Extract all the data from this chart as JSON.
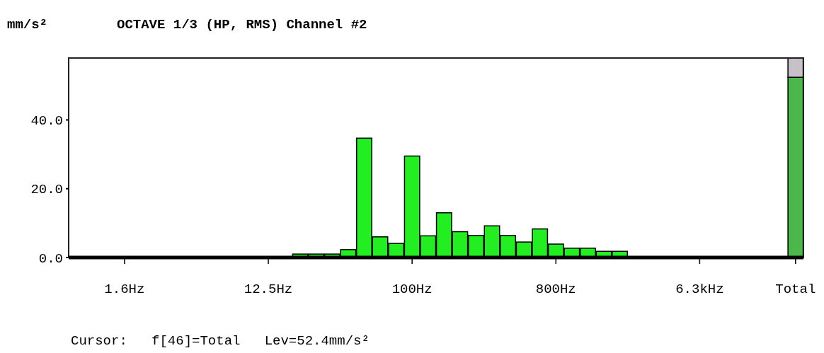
{
  "chart_data": {
    "type": "bar",
    "title": "OCTAVE 1/3  (HP, RMS)  Channel #2",
    "ylabel": "mm/s²",
    "annotations": [
      "Cursor:   f[46]=Total   Lev=52.4mm/s²"
    ],
    "categories": [
      null,
      null,
      null,
      "1.6Hz",
      null,
      null,
      null,
      null,
      null,
      null,
      null,
      null,
      "12.5Hz",
      null,
      null,
      null,
      null,
      null,
      null,
      null,
      null,
      "100Hz",
      null,
      null,
      null,
      null,
      null,
      null,
      null,
      null,
      "800Hz",
      null,
      null,
      null,
      null,
      null,
      null,
      null,
      null,
      "6.3kHz",
      null,
      null,
      null,
      null,
      null,
      "Total"
    ],
    "stacked": true,
    "series": [
      {
        "colors": [
          null,
          null,
          null,
          null,
          null,
          null,
          null,
          null,
          null,
          null,
          null,
          null,
          null,
          null,
          "#22ee22",
          "#22ee22",
          "#22ee22",
          "#22ee22",
          "#22ee22",
          "#22ee22",
          "#22ee22",
          "#22ee22",
          "#22ee22",
          "#22ee22",
          "#22ee22",
          "#22ee22",
          "#22ee22",
          "#22ee22",
          "#22ee22",
          "#22ee22",
          "#22ee22",
          "#22ee22",
          "#22ee22",
          "#22ee22",
          "#22ee22",
          null,
          null,
          null,
          null,
          null,
          null,
          null,
          null,
          null,
          null,
          "#4cb84c"
        ],
        "values": [
          null,
          null,
          null,
          null,
          null,
          null,
          null,
          null,
          null,
          null,
          null,
          null,
          null,
          null,
          1.0,
          1.0,
          1.0,
          2.3,
          34.7,
          6.0,
          4.1,
          29.5,
          6.3,
          13.0,
          7.5,
          6.4,
          9.2,
          6.4,
          4.5,
          8.3,
          3.9,
          2.7,
          2.7,
          1.8,
          1.8,
          null,
          null,
          null,
          null,
          null,
          null,
          null,
          null,
          null,
          null,
          52.4
        ]
      },
      {
        "color": "#c8c0c8",
        "values": [
          null,
          null,
          null,
          null,
          null,
          null,
          null,
          null,
          null,
          null,
          null,
          null,
          null,
          null,
          null,
          null,
          null,
          null,
          null,
          null,
          null,
          null,
          null,
          null,
          null,
          null,
          null,
          null,
          null,
          null,
          null,
          null,
          null,
          null,
          null,
          null,
          null,
          null,
          null,
          null,
          null,
          null,
          null,
          null,
          null,
          5.6
        ]
      }
    ],
    "ylim": [
      0,
      58
    ],
    "yticks": [
      {
        "value": 0,
        "label": "0.0"
      },
      {
        "value": 20,
        "label": "20.0"
      },
      {
        "value": 40,
        "label": "40.0"
      }
    ],
    "grid": false
  }
}
